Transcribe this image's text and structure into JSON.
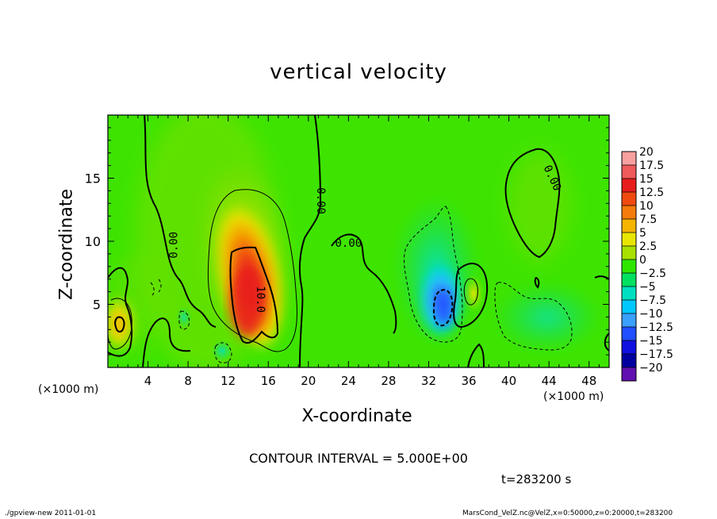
{
  "chart_data": {
    "type": "heatmap",
    "title": "vertical velocity",
    "xlabel": "X-coordinate",
    "ylabel": "Z-coordinate",
    "x_unit_label": "(×1000 m)",
    "y_unit_label": "(×1000 m)",
    "xlim": [
      0,
      50
    ],
    "ylim": [
      0,
      20
    ],
    "x_ticks": [
      4,
      8,
      12,
      16,
      20,
      24,
      28,
      32,
      36,
      40,
      44,
      48
    ],
    "y_ticks": [
      5,
      10,
      15
    ],
    "colorbar": {
      "levels": [
        "20",
        "17.5",
        "15",
        "12.5",
        "10",
        "7.5",
        "5",
        "2.5",
        "0",
        "−2.5",
        "−5",
        "−7.5",
        "−10",
        "−12.5",
        "−15",
        "−17.5",
        "−20"
      ],
      "colors": [
        "#f7a0a0",
        "#f05a5a",
        "#e81c1c",
        "#f04a10",
        "#f57c0a",
        "#f5b400",
        "#e8e600",
        "#a8e000",
        "#2ee600",
        "#00e060",
        "#00e0c0",
        "#00c8ff",
        "#3aa0ff",
        "#2050ff",
        "#1010e0",
        "#0000a0",
        "#6010b0"
      ]
    },
    "contour_labels": [
      {
        "text": "0.00",
        "x": 6.6,
        "z": 9.7,
        "angle": -90
      },
      {
        "text": "10.0",
        "x": 15.2,
        "z": 5.4,
        "angle": 90
      },
      {
        "text": "0.00",
        "x": 21.2,
        "z": 13.2,
        "angle": 90
      },
      {
        "text": "0.00",
        "x": 24.0,
        "z": 9.8,
        "angle": 0
      },
      {
        "text": "0.00",
        "x": 44.3,
        "z": 15.0,
        "angle": 65
      }
    ],
    "features": [
      {
        "type": "updraft",
        "x": 14,
        "z": 6,
        "max": 12.5
      },
      {
        "type": "updraft",
        "x": 1.1,
        "z": 3.5,
        "max": 7.5
      },
      {
        "type": "downdraft",
        "x": 33,
        "z": 5.2,
        "min": -12.5
      },
      {
        "type": "updraft",
        "x": 36.4,
        "z": 6,
        "max": 5
      }
    ],
    "contour_interval_text": "CONTOUR INTERVAL = 5.000E+00",
    "time_text": "t=283200 s"
  },
  "footer": {
    "left": "./gpview-new   2011-01-01",
    "right": "MarsCond_VelZ.nc@VelZ,x=0:50000,z=0:20000,t=283200"
  }
}
